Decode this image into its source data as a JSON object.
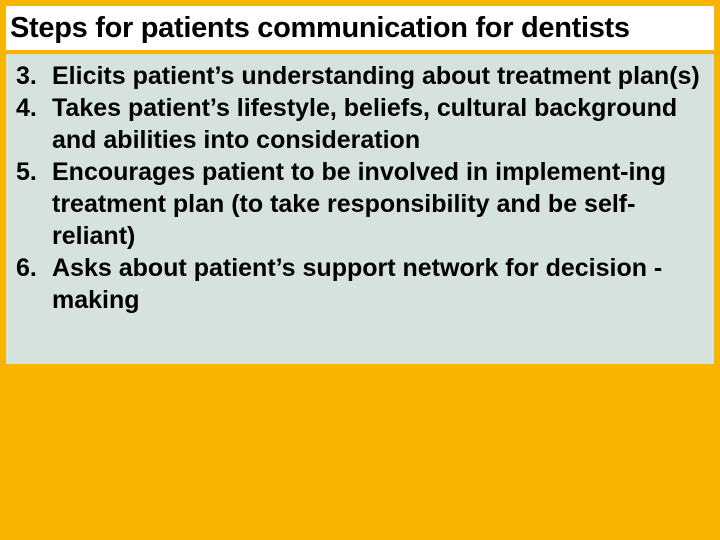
{
  "slide": {
    "title": "Steps for patients communication for dentists",
    "background_color": "#f7b500",
    "title_bar_bg": "#ffffff",
    "content_bg": "#d5e3dc",
    "text_color": "#000000",
    "title_fontsize": 29,
    "body_fontsize": 25,
    "items": [
      {
        "num": "3.",
        "text": "Elicits patient’s understanding about treatment plan(s)"
      },
      {
        "num": "4.",
        "text": "Takes patient’s lifestyle, beliefs, cultural background and abilities into consideration"
      },
      {
        "num": "5.",
        "text": "Encourages patient to be involved in implement-ing treatment plan (to take responsibility and be self-reliant)"
      },
      {
        "num": "6.",
        "text": "Asks about patient’s support network for decision -making"
      }
    ]
  }
}
